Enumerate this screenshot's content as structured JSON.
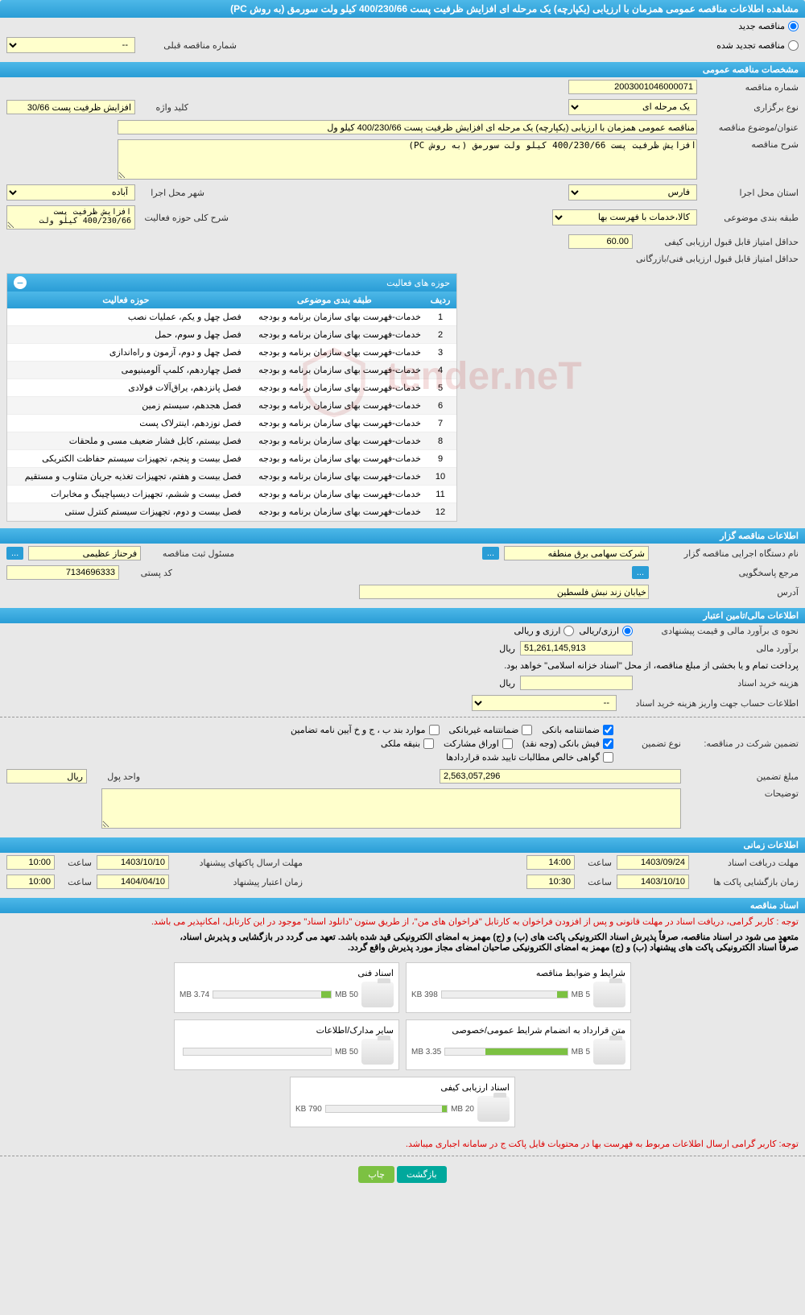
{
  "header": {
    "title": "مشاهده اطلاعات مناقصه عمومی همزمان با ارزیابی (یکپارچه) یک مرحله ای افزایش ظرفیت پست 400/230/66 کیلو ولت سورمق (به روش PC)"
  },
  "tender_type": {
    "new_label": "مناقصه جدید",
    "renewed_label": "مناقصه تجدید شده",
    "prev_number_label": "شماره مناقصه قبلی",
    "prev_number_value": "--"
  },
  "general_specs": {
    "section_title": "مشخصات مناقصه عمومی",
    "tender_number_label": "شماره مناقصه",
    "tender_number": "2003001046000071",
    "holding_type_label": "نوع برگزاری",
    "holding_type": "یک مرحله ای",
    "keyword_label": "کلید واژه",
    "keyword": "افزایش ظرفیت پست 30/66",
    "subject_label": "عنوان/موضوع مناقصه",
    "subject": "مناقصه عمومی همزمان با ارزیابی (یکپارچه) یک مرحله ای افزایش ظرفیت پست 400/230/66 کیلو ول",
    "description_label": "شرح مناقصه",
    "description": "افزایش ظرفیت پست 400/230/66 کیلو ولت سورمق (به روش PC)",
    "province_label": "استان محل اجرا",
    "province": "فارس",
    "city_label": "شهر محل اجرا",
    "city": "آباده",
    "category_label": "طبقه بندی موضوعی",
    "category": "کالا،خدمات با فهرست بها",
    "activity_desc_label": "شرح کلی حوزه فعالیت",
    "activity_desc": "افزایش ظرفیت پست 400/230/66 کیلو ولت",
    "min_quality_score_label": "حداقل امتیاز قابل قبول ارزیابی کیفی",
    "min_quality_score": "60.00",
    "min_tech_score_label": "حداقل امتیاز قابل قبول ارزیابی فنی/بازرگانی"
  },
  "activity_areas": {
    "title": "حوزه های فعالیت",
    "col_row": "ردیف",
    "col_category": "طبقه بندی موضوعی",
    "col_activity": "حوزه فعالیت",
    "rows": [
      {
        "n": "1",
        "cat": "خدمات-فهرست بهای سازمان برنامه و بودجه",
        "act": "فصل چهل و یکم، عملیات نصب"
      },
      {
        "n": "2",
        "cat": "خدمات-فهرست بهای سازمان برنامه و بودجه",
        "act": "فصل چهل و سوم، حمل"
      },
      {
        "n": "3",
        "cat": "خدمات-فهرست بهای سازمان برنامه و بودجه",
        "act": "فصل چهل و دوم، آزمون و راه‌اندازی"
      },
      {
        "n": "4",
        "cat": "خدمات-فهرست بهای سازمان برنامه و بودجه",
        "act": "فصل چهاردهم، کلمپ آلومینیومی"
      },
      {
        "n": "5",
        "cat": "خدمات-فهرست بهای سازمان برنامه و بودجه",
        "act": "فصل پانزدهم، یراق‌آلات فولادی"
      },
      {
        "n": "6",
        "cat": "خدمات-فهرست بهای سازمان برنامه و بودجه",
        "act": "فصل هجدهم، سیستم زمین"
      },
      {
        "n": "7",
        "cat": "خدمات-فهرست بهای سازمان برنامه و بودجه",
        "act": "فصل نوزدهم، اینترلاک پست"
      },
      {
        "n": "8",
        "cat": "خدمات-فهرست بهای سازمان برنامه و بودجه",
        "act": "فصل بیستم، کابل فشار ضعیف مسی و ملحقات"
      },
      {
        "n": "9",
        "cat": "خدمات-فهرست بهای سازمان برنامه و بودجه",
        "act": "فصل بیست و پنجم، تجهیزات سیستم حفاظت الکتریکی"
      },
      {
        "n": "10",
        "cat": "خدمات-فهرست بهای سازمان برنامه و بودجه",
        "act": "فصل بیست و هفتم، تجهیزات تغذیه جریان متناوب و مستقیم"
      },
      {
        "n": "11",
        "cat": "خدمات-فهرست بهای سازمان برنامه و بودجه",
        "act": "فصل بیست و ششم، تجهیزات دیسپاچینگ و مخابرات"
      },
      {
        "n": "12",
        "cat": "خدمات-فهرست بهای سازمان برنامه و بودجه",
        "act": "فصل بیست و دوم، تجهیزات سیستم کنترل سنتی"
      }
    ]
  },
  "tenderer": {
    "section_title": "اطلاعات مناقصه گزار",
    "org_label": "نام دستگاه اجرایی مناقصه گزار",
    "org": "شرکت سهامی برق منطقه",
    "responsible_label": "مسئول ثبت مناقصه",
    "responsible": "فرحناز عظیمی",
    "response_label": "مرجع پاسخگویی",
    "postcode_label": "کد پستی",
    "postcode": "7134696333",
    "address_label": "آدرس",
    "address": "خیابان زند نبش فلسطین"
  },
  "financial": {
    "section_title": "اطلاعات مالی/تامین اعتبار",
    "estimate_method_label": "نحوه ی برآورد مالی و قیمت پیشنهادی",
    "option_rial": "ارزی/ریالی",
    "option_currency": "ارزی و ریالی",
    "estimate_label": "برآورد مالی",
    "estimate_value": "51,261,145,913",
    "rial": "ریال",
    "payment_note": "پرداخت تمام و یا بخشی از مبلغ مناقصه، از محل \"اسناد خزانه اسلامی\" خواهد بود.",
    "doc_fee_label": "هزینه خرید اسناد",
    "account_info_label": "اطلاعات حساب جهت واریز هزینه خرید اسناد",
    "account_info_value": "--"
  },
  "guarantee": {
    "title_label": "تضمین شرکت در مناقصه:",
    "type_label": "نوع تضمین",
    "opt_bank_guarantee": "ضمانتنامه بانکی",
    "opt_nonbank_guarantee": "ضمانتنامه غیربانکی",
    "opt_regulation": "موارد بند ب ، ج و خ آیین نامه تضامین",
    "opt_bank_receipt": "فیش بانکی (وجه نقد)",
    "opt_bonds": "اوراق مشارکت",
    "opt_property": "بنیقه ملکی",
    "opt_confirmed": "گواهی خالص مطالبات تایید شده قراردادها",
    "amount_label": "مبلغ تضمین",
    "amount": "2,563,057,296",
    "unit_label": "واحد پول",
    "unit": "ریال",
    "notes_label": "توضیحات"
  },
  "schedule": {
    "section_title": "اطلاعات زمانی",
    "receive_deadline_label": "مهلت دریافت اسناد",
    "receive_deadline_date": "1403/09/24",
    "time_label": "ساعت",
    "receive_deadline_time": "14:00",
    "send_deadline_label": "مهلت ارسال پاکتهای پیشنهاد",
    "send_deadline_date": "1403/10/10",
    "send_deadline_time": "10:00",
    "opening_label": "زمان بازگشایی پاکت ها",
    "opening_date": "1403/10/10",
    "opening_time": "10:30",
    "validity_label": "زمان اعتبار پیشنهاد",
    "validity_date": "1404/04/10",
    "validity_time": "10:00"
  },
  "documents": {
    "section_title": "اسناد مناقصه",
    "note1": "توجه : کاربر گرامی، دریافت اسناد در مهلت قانونی و پس از افزودن فراخوان به کارتابل \"فراخوان های من\"، از طریق ستون \"دانلود اسناد\" موجود در این کارتابل، امکانپذیر می باشد.",
    "note2_part1": "متعهد می شود در اسناد مناقصه، صرفاً پذیرش اسناد الکترونیکی پاکت های (ب) و (ج) مهمز به امضای الکترونیکی قید شده باشد. تعهد می گردد در بازگشایی و پذیرش اسناد،",
    "note2_part2": "صرفاً اسناد الکترونیکی پاکت های پیشنهاد (ب) و (ج) مهمز به امضای الکترونیکی صاحبان امضای مجاز مورد پذیرش واقع گردد.",
    "files": [
      {
        "name": "شرایط و ضوابط مناقصه",
        "used": "398 KB",
        "total": "5 MB",
        "pct": 8
      },
      {
        "name": "اسناد فنی",
        "used": "3.74 MB",
        "total": "50 MB",
        "pct": 8
      },
      {
        "name": "متن قرارداد به انضمام شرایط عمومی/خصوصی",
        "used": "3.35 MB",
        "total": "5 MB",
        "pct": 67
      },
      {
        "name": "سایر مدارک/اطلاعات",
        "used": "",
        "total": "50 MB",
        "pct": 0
      },
      {
        "name": "اسناد ارزیابی کیفی",
        "used": "790 KB",
        "total": "20 MB",
        "pct": 4
      }
    ],
    "bottom_note": "توجه: کاربر گرامی ارسال اطلاعات مربوط به فهرست بها در محتویات فایل پاکت ج در سامانه اجباری میباشد."
  },
  "buttons": {
    "back": "بازگشت",
    "print": "چاپ"
  },
  "watermark_text": "tender.neT"
}
